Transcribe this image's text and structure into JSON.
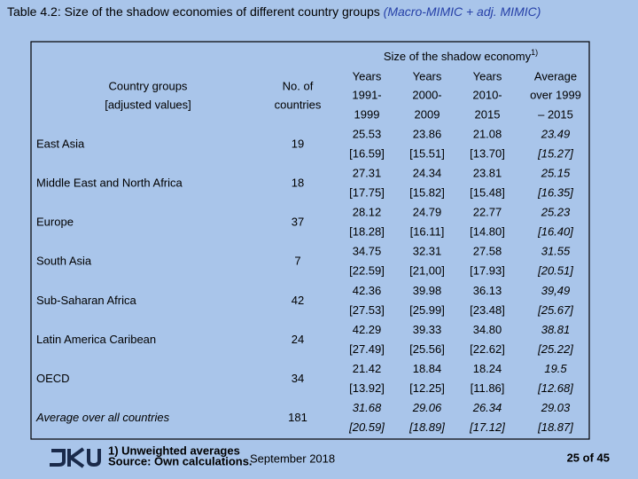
{
  "header": {
    "title": "Table 4.2: Size of the shadow economies of different country groups",
    "title_method": "(Macro-MIMIC + adj. MIMIC)"
  },
  "table": {
    "group_header": "Size of the shadow economy",
    "group_header_note": "1)",
    "columns": [
      [
        "Country groups",
        "[adjusted values]"
      ],
      [
        "No. of",
        "countries"
      ],
      [
        "Years",
        "1991-",
        "1999"
      ],
      [
        "Years",
        "2000-",
        "2009"
      ],
      [
        "Years",
        "2010-",
        "2015"
      ],
      [
        "Average",
        "over 1999",
        "– 2015"
      ]
    ],
    "rows": [
      {
        "name": "East Asia",
        "count": "19",
        "cells": [
          [
            "25.53",
            "[16.59]"
          ],
          [
            "23.86",
            "[15.51]"
          ],
          [
            "21.08",
            "[13.70]"
          ],
          [
            "23.49",
            "[15.27]"
          ]
        ]
      },
      {
        "name": "Middle East and North Africa",
        "count": "18",
        "cells": [
          [
            "27.31",
            "[17.75]"
          ],
          [
            "24.34",
            "[15.82]"
          ],
          [
            "23.81",
            "[15.48]"
          ],
          [
            "25.15",
            "[16.35]"
          ]
        ]
      },
      {
        "name": "Europe",
        "count": "37",
        "cells": [
          [
            "28.12",
            "[18.28]"
          ],
          [
            "24.79",
            "[16.11]"
          ],
          [
            "22.77",
            "[14.80]"
          ],
          [
            "25.23",
            "[16.40]"
          ]
        ]
      },
      {
        "name": "South Asia",
        "count": "7",
        "cells": [
          [
            "34.75",
            "[22.59]"
          ],
          [
            "32.31",
            "[21,00]"
          ],
          [
            "27.58",
            "[17.93]"
          ],
          [
            "31.55",
            "[20.51]"
          ]
        ]
      },
      {
        "name": "Sub-Saharan Africa",
        "count": "42",
        "cells": [
          [
            "42.36",
            "[27.53]"
          ],
          [
            "39.98",
            "[25.99]"
          ],
          [
            "36.13",
            "[23.48]"
          ],
          [
            "39,49",
            "[25.67]"
          ]
        ]
      },
      {
        "name": "Latin America Caribean",
        "count": "24",
        "cells": [
          [
            "42.29",
            "[27.49]"
          ],
          [
            "39.33",
            "[25.56]"
          ],
          [
            "34.80",
            "[22.62]"
          ],
          [
            "38.81",
            "[25.22]"
          ]
        ]
      },
      {
        "name": "OECD",
        "count": "34",
        "cells": [
          [
            "21.42",
            "[13.92]"
          ],
          [
            "18.84",
            "[12.25]"
          ],
          [
            "18.24",
            "[11.86]"
          ],
          [
            "19.5",
            "[12.68]"
          ]
        ]
      },
      {
        "name": "Average over all countries",
        "count": "181",
        "cells": [
          [
            "31.68",
            "[20.59]"
          ],
          [
            "29.06",
            "[18.89]"
          ],
          [
            "26.34",
            "[17.12]"
          ],
          [
            "29.03",
            "[18.87]"
          ]
        ]
      }
    ]
  },
  "footer": {
    "notes": [
      "1) Unweighted averages",
      "Source: Own calculations."
    ],
    "date": "September 2018",
    "page": "25 of 45"
  }
}
